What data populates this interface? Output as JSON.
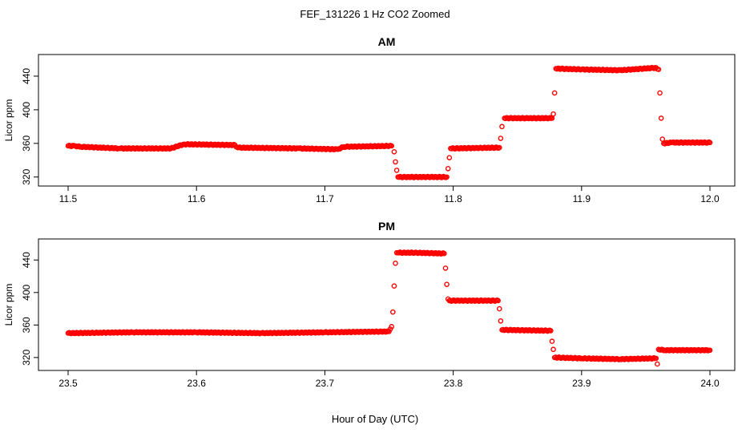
{
  "title": "FEF_131226  1 Hz CO2 Zoomed",
  "xlabel": "Hour of Day (UTC)",
  "colors": {
    "points": "#ff0000",
    "axis": "#000000"
  },
  "chart_data": [
    {
      "type": "scatter",
      "title": "AM",
      "ylabel": "Licor ppm",
      "xlabel": "",
      "xlim": [
        11.5,
        12.0
      ],
      "ylim": [
        315,
        460
      ],
      "xticks": [
        "11.5",
        "11.6",
        "11.7",
        "11.8",
        "11.9",
        "12.0"
      ],
      "yticks": [
        "320",
        "360",
        "400",
        "440"
      ],
      "grid": false,
      "marker": "open-circle",
      "series": [
        {
          "x": [
            11.5,
            11.505,
            11.51,
            11.54,
            11.58,
            11.59,
            11.63,
            11.632,
            11.68,
            11.71,
            11.715,
            11.752,
            11.754,
            11.755,
            11.756,
            11.757,
            11.795,
            11.796,
            11.797,
            11.798,
            11.836,
            11.837,
            11.838,
            11.84,
            11.877,
            11.878,
            11.879,
            11.88,
            11.9,
            11.93,
            11.958,
            11.96,
            11.961,
            11.962,
            11.963,
            11.964,
            11.97,
            12.0
          ],
          "y": [
            357,
            357,
            356,
            354,
            354,
            359,
            358,
            355,
            354,
            353,
            356,
            357,
            350,
            338,
            328,
            320,
            320,
            330,
            343,
            354,
            355,
            366,
            380,
            390,
            390,
            395,
            420,
            449,
            448,
            447,
            450,
            448,
            420,
            390,
            365,
            360,
            361,
            361
          ]
        }
      ]
    },
    {
      "type": "scatter",
      "title": "PM",
      "ylabel": "Licor ppm",
      "xlabel": "",
      "xlim": [
        23.5,
        24.0
      ],
      "ylim": [
        310,
        460
      ],
      "xticks": [
        "23.5",
        "23.6",
        "23.7",
        "23.8",
        "23.9",
        "24.0"
      ],
      "yticks": [
        "320",
        "360",
        "400",
        "440"
      ],
      "grid": false,
      "marker": "open-circle",
      "series": [
        {
          "x": [
            23.5,
            23.55,
            23.6,
            23.65,
            23.7,
            23.75,
            23.752,
            23.753,
            23.754,
            23.755,
            23.756,
            23.757,
            23.77,
            23.793,
            23.794,
            23.795,
            23.796,
            23.797,
            23.835,
            23.836,
            23.837,
            23.838,
            23.876,
            23.877,
            23.878,
            23.879,
            23.9,
            23.93,
            23.958,
            23.959,
            23.96,
            23.965,
            24.0
          ],
          "y": [
            350,
            351,
            351,
            350,
            351,
            352,
            358,
            376,
            408,
            436,
            449,
            449,
            449,
            448,
            430,
            410,
            392,
            390,
            390,
            380,
            365,
            354,
            353,
            340,
            330,
            320,
            319,
            318,
            319,
            312,
            330,
            329,
            329
          ]
        }
      ]
    }
  ]
}
